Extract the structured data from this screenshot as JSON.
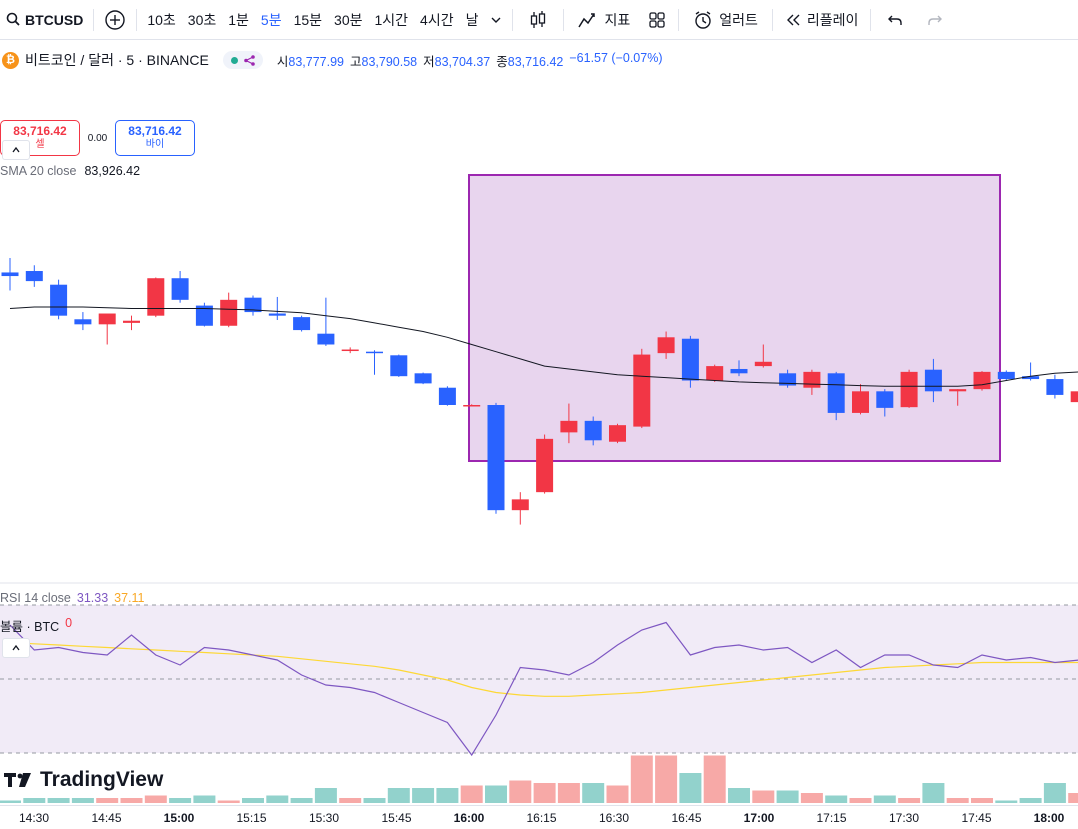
{
  "toolbar": {
    "symbol": "BTCUSD",
    "intervals": [
      "10초",
      "30초",
      "1분",
      "5분",
      "15분",
      "30분",
      "1시간",
      "4시간",
      "날"
    ],
    "active_interval": "5분",
    "indicators_label": "지표",
    "alert_label": "얼러트",
    "replay_label": "리플레이"
  },
  "legend": {
    "coin_glyph": "₿",
    "title": "비트코인 / 달러 · 5 · BINANCE",
    "ohlc": {
      "open_label": "시",
      "open": "83,777.99",
      "high_label": "고",
      "high": "83,790.58",
      "low_label": "저",
      "low": "83,704.37",
      "close_label": "종",
      "close": "83,716.42",
      "change": "−61.57 (−0.07%)"
    },
    "sell": {
      "price": "83,716.42",
      "label": "셀"
    },
    "spread": "0.00",
    "buy": {
      "price": "83,716.42",
      "label": "바이"
    },
    "sma": {
      "label": "SMA 20 close",
      "value": "83,926.42"
    }
  },
  "rsi_legend": {
    "label": "RSI 14 close",
    "value": "31.33",
    "ma_value": "37.11"
  },
  "volume_legend": {
    "label": "볼륨 · BTC",
    "value": "0"
  },
  "logo_text": "TradingView",
  "colors": {
    "up": "#f23645",
    "down": "#2962ff",
    "vol_up": "#f7a9a7",
    "vol_down": "#92d2cc",
    "highlight_fill": "#e8d5ee",
    "highlight_border": "#9c27b0",
    "rsi_line": "#7e57c2",
    "rsi_ma": "#fdd835"
  },
  "time_axis": [
    "14:30",
    "14:45",
    "15:00",
    "15:15",
    "15:30",
    "15:45",
    "16:00",
    "16:15",
    "16:30",
    "16:45",
    "17:00",
    "17:15",
    "17:30",
    "17:45",
    "18:00"
  ],
  "time_axis_bold": [
    "15:00",
    "16:00",
    "17:00",
    "18:00"
  ],
  "chart_data": {
    "type": "candlestick",
    "candles": [
      {
        "o": 84010,
        "h": 84030,
        "l": 83985,
        "c": 84005
      },
      {
        "o": 84012,
        "h": 84020,
        "l": 83990,
        "c": 83998
      },
      {
        "o": 83993,
        "h": 84000,
        "l": 83945,
        "c": 83950
      },
      {
        "o": 83945,
        "h": 83955,
        "l": 83930,
        "c": 83938
      },
      {
        "o": 83938,
        "h": 83952,
        "l": 83910,
        "c": 83953
      },
      {
        "o": 83940,
        "h": 83950,
        "l": 83930,
        "c": 83943
      },
      {
        "o": 83950,
        "h": 84003,
        "l": 83948,
        "c": 84002
      },
      {
        "o": 84002,
        "h": 84012,
        "l": 83968,
        "c": 83972
      },
      {
        "o": 83964,
        "h": 83968,
        "l": 83935,
        "c": 83936
      },
      {
        "o": 83936,
        "h": 83982,
        "l": 83934,
        "c": 83972
      },
      {
        "o": 83975,
        "h": 83978,
        "l": 83950,
        "c": 83955
      },
      {
        "o": 83953,
        "h": 83976,
        "l": 83944,
        "c": 83950
      },
      {
        "o": 83948,
        "h": 83950,
        "l": 83928,
        "c": 83930
      },
      {
        "o": 83925,
        "h": 83975,
        "l": 83908,
        "c": 83910
      },
      {
        "o": 83902,
        "h": 83906,
        "l": 83898,
        "c": 83903
      },
      {
        "o": 83900,
        "h": 83902,
        "l": 83868,
        "c": 83898
      },
      {
        "o": 83895,
        "h": 83896,
        "l": 83865,
        "c": 83866
      },
      {
        "o": 83870,
        "h": 83871,
        "l": 83855,
        "c": 83856
      },
      {
        "o": 83850,
        "h": 83852,
        "l": 83825,
        "c": 83826
      },
      {
        "o": 83826,
        "h": 83827,
        "l": 83825,
        "c": 83826
      },
      {
        "o": 83826,
        "h": 83829,
        "l": 83675,
        "c": 83680
      },
      {
        "o": 83680,
        "h": 83705,
        "l": 83660,
        "c": 83695
      },
      {
        "o": 83705,
        "h": 83785,
        "l": 83703,
        "c": 83779
      },
      {
        "o": 83788,
        "h": 83828,
        "l": 83773,
        "c": 83804
      },
      {
        "o": 83804,
        "h": 83810,
        "l": 83770,
        "c": 83777
      },
      {
        "o": 83775,
        "h": 83800,
        "l": 83773,
        "c": 83798
      },
      {
        "o": 83796,
        "h": 83904,
        "l": 83794,
        "c": 83896
      },
      {
        "o": 83898,
        "h": 83928,
        "l": 83890,
        "c": 83920
      },
      {
        "o": 83918,
        "h": 83922,
        "l": 83850,
        "c": 83860
      },
      {
        "o": 83860,
        "h": 83882,
        "l": 83858,
        "c": 83880
      },
      {
        "o": 83876,
        "h": 83888,
        "l": 83866,
        "c": 83870
      },
      {
        "o": 83880,
        "h": 83910,
        "l": 83878,
        "c": 83886
      },
      {
        "o": 83870,
        "h": 83875,
        "l": 83850,
        "c": 83853
      },
      {
        "o": 83850,
        "h": 83875,
        "l": 83840,
        "c": 83872
      },
      {
        "o": 83870,
        "h": 83872,
        "l": 83805,
        "c": 83815
      },
      {
        "o": 83815,
        "h": 83855,
        "l": 83813,
        "c": 83845
      },
      {
        "o": 83845,
        "h": 83848,
        "l": 83810,
        "c": 83822
      },
      {
        "o": 83823,
        "h": 83875,
        "l": 83822,
        "c": 83872
      },
      {
        "o": 83875,
        "h": 83890,
        "l": 83830,
        "c": 83845
      },
      {
        "o": 83845,
        "h": 83848,
        "l": 83825,
        "c": 83848
      },
      {
        "o": 83848,
        "h": 83873,
        "l": 83846,
        "c": 83872
      },
      {
        "o": 83872,
        "h": 83874,
        "l": 83860,
        "c": 83862
      },
      {
        "o": 83866,
        "h": 83885,
        "l": 83860,
        "c": 83862
      },
      {
        "o": 83862,
        "h": 83868,
        "l": 83835,
        "c": 83840
      },
      {
        "o": 83830,
        "h": 83845,
        "l": 83820,
        "c": 83845
      }
    ],
    "sma20": [
      83960,
      83962,
      83962,
      83962,
      83961,
      83960,
      83960,
      83960,
      83960,
      83959,
      83958,
      83956,
      83954,
      83950,
      83946,
      83940,
      83934,
      83928,
      83920,
      83910,
      83900,
      83890,
      83880,
      83876,
      83872,
      83868,
      83866,
      83864,
      83862,
      83860,
      83858,
      83857,
      83856,
      83855,
      83854,
      83853,
      83852,
      83852,
      83852,
      83852,
      83854,
      83860,
      83866,
      83870,
      83872
    ],
    "ylim": [
      83590,
      84180
    ],
    "rsi": [
      72,
      62,
      63,
      61,
      60,
      68,
      60,
      56,
      63,
      62,
      60,
      58,
      52,
      48,
      47,
      45,
      41,
      37,
      33,
      20,
      36,
      55,
      54,
      52,
      57,
      64,
      70,
      73,
      60,
      63,
      64,
      62,
      63,
      57,
      62,
      55,
      60,
      60,
      56,
      55,
      60,
      58,
      59,
      57,
      58
    ],
    "rsi_ma": [
      65,
      64.5,
      64,
      63.5,
      63,
      62.5,
      62,
      61.5,
      61,
      60.5,
      60,
      59.5,
      58.5,
      57.5,
      56.5,
      55.5,
      54,
      52,
      50,
      47,
      45,
      44,
      43.5,
      43.5,
      44,
      44.5,
      45,
      46,
      47,
      48,
      49,
      50,
      51,
      52,
      53,
      54,
      55,
      55.5,
      56,
      56.5,
      57,
      57,
      57,
      57,
      57
    ],
    "rsi_ylim": [
      20,
      80
    ],
    "volume": [
      1,
      2,
      2,
      2,
      2,
      2,
      3,
      2,
      3,
      1,
      2,
      3,
      2,
      6,
      2,
      2,
      6,
      6,
      6,
      7,
      7,
      9,
      8,
      8,
      8,
      7,
      19,
      19,
      12,
      19,
      6,
      5,
      5,
      4,
      3,
      2,
      3,
      2,
      8,
      2,
      2,
      1,
      2,
      8,
      4
    ],
    "volume_max": 20,
    "up_color_meaning": "close >= open"
  }
}
